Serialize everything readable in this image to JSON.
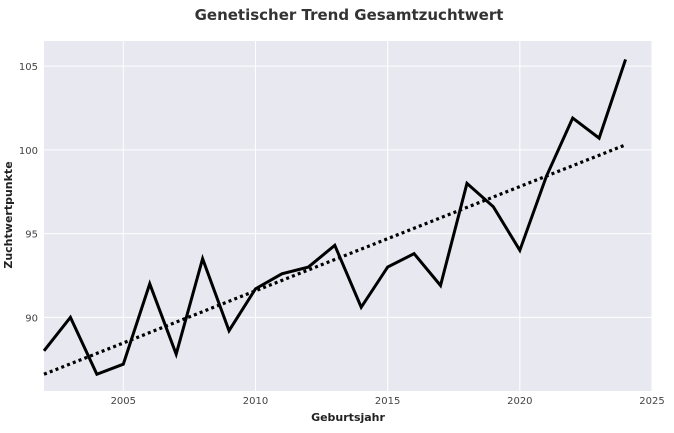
{
  "chart_data": {
    "type": "line",
    "title": "Genetischer Trend Gesamtzuchtwert",
    "xlabel": "Geburtsjahr",
    "ylabel": "Zuchtwertpunkte",
    "xlim": [
      2002,
      2025
    ],
    "ylim": [
      85.6,
      106.5
    ],
    "xticks": [
      2005,
      2010,
      2015,
      2020,
      2025
    ],
    "yticks": [
      90,
      95,
      100,
      105
    ],
    "grid": true,
    "background": "#e8e8f0",
    "x": [
      2002,
      2003,
      2004,
      2005,
      2006,
      2007,
      2008,
      2009,
      2010,
      2011,
      2012,
      2013,
      2014,
      2015,
      2016,
      2017,
      2018,
      2019,
      2020,
      2021,
      2022,
      2023,
      2024
    ],
    "series": [
      {
        "values": [
          88.0,
          90.0,
          86.6,
          87.2,
          92.0,
          87.8,
          93.5,
          89.2,
          91.7,
          92.6,
          93.0,
          94.3,
          90.6,
          93.0,
          93.8,
          91.9,
          98.0,
          96.6,
          94.0,
          98.4,
          101.9,
          100.7,
          105.4
        ],
        "color": "#000000",
        "style": "solid"
      },
      {
        "values_at_ends": [
          86.6,
          100.3
        ],
        "x_ends": [
          2002,
          2024
        ],
        "color": "#000000",
        "style": "dotted"
      }
    ]
  }
}
